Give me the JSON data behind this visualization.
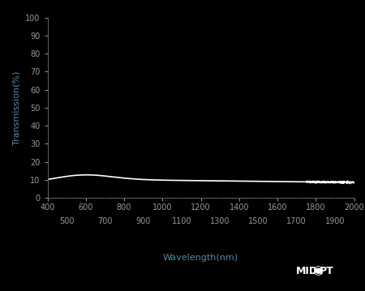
{
  "background_color": "#000000",
  "axes_bg_color": "#000000",
  "line_color": "#ffffff",
  "tick_label_color": "#999999",
  "axis_label_color": "#5588aa",
  "xlabel": "Wavelength(nm)",
  "ylabel": "Transmission(%)",
  "xlim": [
    400,
    2000
  ],
  "ylim": [
    0,
    100
  ],
  "xticks_major": [
    400,
    600,
    800,
    1000,
    1200,
    1400,
    1600,
    1800,
    2000
  ],
  "xticks_minor": [
    500,
    700,
    900,
    1100,
    1300,
    1500,
    1700,
    1900
  ],
  "yticks": [
    0,
    10,
    20,
    30,
    40,
    50,
    60,
    70,
    80,
    90,
    100
  ],
  "line_width": 1.2,
  "figsize": [
    4.5,
    3.59
  ],
  "dpi": 100
}
